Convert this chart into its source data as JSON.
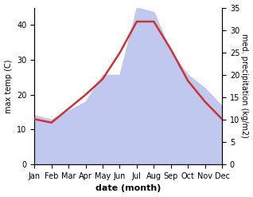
{
  "months": [
    "Jan",
    "Feb",
    "Mar",
    "Apr",
    "May",
    "Jun",
    "Jul",
    "Aug",
    "Sep",
    "Oct",
    "Nov",
    "Dec"
  ],
  "temp": [
    13,
    12,
    16,
    20,
    24.5,
    32,
    41,
    41,
    33,
    24,
    18,
    13
  ],
  "precip": [
    11,
    10,
    12,
    14,
    20,
    20,
    35,
    34,
    25,
    20,
    17,
    13
  ],
  "temp_color": "#cc3333",
  "precip_color": "#c0c8f0",
  "temp_ylim": [
    0,
    45
  ],
  "precip_ylim": [
    0,
    35
  ],
  "temp_yticks": [
    0,
    10,
    20,
    30,
    40
  ],
  "precip_yticks": [
    0,
    5,
    10,
    15,
    20,
    25,
    30,
    35
  ],
  "xlabel": "date (month)",
  "ylabel_left": "max temp (C)",
  "ylabel_right": "med. precipitation (kg/m2)",
  "bg_color": "#ffffff",
  "temp_linewidth": 1.8,
  "label_fontsize": 7,
  "tick_fontsize": 7
}
